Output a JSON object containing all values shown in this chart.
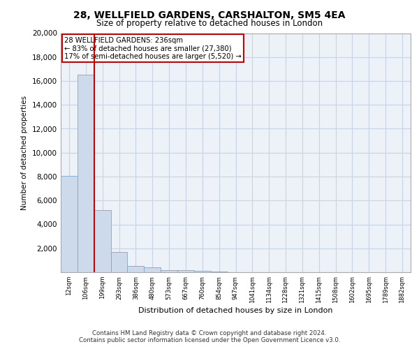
{
  "title": "28, WELLFIELD GARDENS, CARSHALTON, SM5 4EA",
  "subtitle": "Size of property relative to detached houses in London",
  "xlabel": "Distribution of detached houses by size in London",
  "ylabel": "Number of detached properties",
  "categories": [
    "12sqm",
    "106sqm",
    "199sqm",
    "293sqm",
    "386sqm",
    "480sqm",
    "573sqm",
    "667sqm",
    "760sqm",
    "854sqm",
    "947sqm",
    "1041sqm",
    "1134sqm",
    "1228sqm",
    "1321sqm",
    "1415sqm",
    "1508sqm",
    "1602sqm",
    "1695sqm",
    "1789sqm",
    "1882sqm"
  ],
  "values": [
    8050,
    16500,
    5200,
    1700,
    500,
    380,
    200,
    160,
    110,
    70,
    0,
    0,
    0,
    0,
    0,
    0,
    0,
    0,
    0,
    0,
    0
  ],
  "bar_color": "#ccdaeb",
  "bar_edge_color": "#7ca8cc",
  "vline_x": 2.0,
  "vline_color": "#cc0000",
  "annotation_text": "28 WELLFIELD GARDENS: 236sqm\n← 83% of detached houses are smaller (27,380)\n17% of semi-detached houses are larger (5,520) →",
  "annotation_box_color": "#ffffff",
  "annotation_box_edge": "#cc0000",
  "ylim": [
    0,
    20000
  ],
  "yticks": [
    0,
    2000,
    4000,
    6000,
    8000,
    10000,
    12000,
    14000,
    16000,
    18000,
    20000
  ],
  "footer_line1": "Contains HM Land Registry data © Crown copyright and database right 2024.",
  "footer_line2": "Contains public sector information licensed under the Open Government Licence v3.0.",
  "grid_color": "#c8d4e4",
  "background_color": "#edf1f8"
}
